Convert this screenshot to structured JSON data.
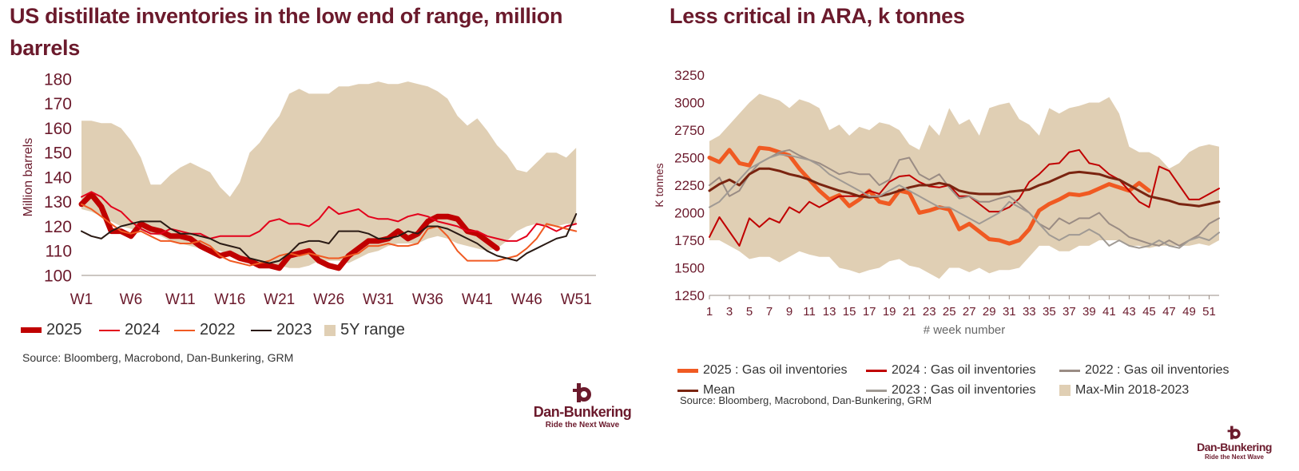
{
  "chart_data": [
    {
      "type": "line",
      "title": "US distillate inventories in the low end of range, million barrels",
      "ylabel": "Million barrels",
      "xlabel": "",
      "ylim": [
        100,
        180
      ],
      "yticks": [
        100,
        110,
        120,
        130,
        140,
        150,
        160,
        170,
        180
      ],
      "xlim": [
        1,
        53
      ],
      "xticks": [
        {
          "v": 1,
          "label": "W1"
        },
        {
          "v": 6,
          "label": "W6"
        },
        {
          "v": 11,
          "label": "W11"
        },
        {
          "v": 16,
          "label": "W16"
        },
        {
          "v": 21,
          "label": "W21"
        },
        {
          "v": 26,
          "label": "W26"
        },
        {
          "v": 31,
          "label": "W31"
        },
        {
          "v": 36,
          "label": "W36"
        },
        {
          "v": 41,
          "label": "W41"
        },
        {
          "v": 46,
          "label": "W46"
        },
        {
          "v": 51,
          "label": "W51"
        }
      ],
      "range": {
        "name": "5Y range",
        "upper": [
          163,
          163,
          162,
          162,
          160,
          155,
          148,
          137,
          137,
          141,
          144,
          146,
          144,
          142,
          136,
          132,
          138,
          150,
          154,
          160,
          165,
          174,
          176,
          174,
          174,
          174,
          177,
          177,
          178,
          178,
          179,
          178,
          178,
          179,
          178,
          177,
          175,
          172,
          165,
          161,
          164,
          159,
          153,
          149,
          143,
          142,
          146,
          150,
          150,
          148,
          152
        ],
        "lower": [
          127,
          126,
          124,
          122,
          120,
          119,
          118,
          117,
          116,
          114,
          113,
          112,
          111,
          110,
          110,
          108,
          106,
          105,
          105,
          104,
          104,
          103,
          103,
          104,
          106,
          106,
          106,
          105,
          107,
          109,
          110,
          112,
          113,
          113,
          113,
          115,
          116,
          115,
          113,
          112,
          111,
          110,
          111,
          114,
          118,
          120,
          121,
          120,
          120,
          121,
          121
        ]
      },
      "series": [
        {
          "name": "2025",
          "color": "#c00000",
          "width": 7,
          "values": [
            129,
            133,
            128,
            118,
            118,
            116,
            121,
            119,
            118,
            116,
            116,
            115,
            112,
            110,
            108,
            109,
            107,
            106,
            104,
            104,
            103,
            108,
            109,
            110,
            106,
            104,
            103,
            108,
            111,
            114,
            114,
            115,
            118,
            115,
            117,
            122,
            124,
            124,
            123,
            118,
            117,
            114,
            111
          ]
        },
        {
          "name": "2024",
          "color": "#e3001b",
          "width": 2,
          "values": [
            132,
            134,
            132,
            128,
            126,
            122,
            119,
            117,
            117,
            119,
            118,
            117,
            117,
            115,
            116,
            116,
            116,
            116,
            118,
            122,
            123,
            121,
            121,
            120,
            123,
            128,
            125,
            126,
            127,
            124,
            123,
            123,
            122,
            124,
            125,
            124,
            122,
            121,
            120,
            118,
            118,
            116,
            115,
            114,
            114,
            116,
            121,
            120,
            118,
            120,
            121
          ]
        },
        {
          "name": "2022",
          "color": "#f05a22",
          "width": 2,
          "values": [
            129,
            127,
            124,
            121,
            118,
            117,
            118,
            116,
            114,
            114,
            113,
            113,
            114,
            112,
            108,
            106,
            105,
            104,
            105,
            106,
            108,
            109,
            108,
            109,
            108,
            107,
            107,
            108,
            109,
            112,
            112,
            113,
            112,
            112,
            113,
            119,
            120,
            116,
            110,
            106,
            106,
            106,
            106,
            107,
            108,
            111,
            115,
            121,
            120,
            119,
            118
          ]
        },
        {
          "name": "2023",
          "color": "#2a1a14",
          "width": 2,
          "values": [
            118,
            116,
            115,
            118,
            120,
            121,
            122,
            122,
            122,
            119,
            117,
            117,
            116,
            115,
            113,
            112,
            111,
            107,
            106,
            105,
            106,
            109,
            113,
            114,
            114,
            113,
            118,
            118,
            118,
            117,
            115,
            115,
            116,
            118,
            117,
            120,
            120,
            119,
            117,
            115,
            113,
            110,
            108,
            107,
            106,
            109,
            111,
            113,
            115,
            116,
            125
          ]
        }
      ],
      "legend": [
        "2025",
        "2024",
        "2022",
        "2023",
        "5Y range"
      ],
      "source": "Source: Bloomberg, Macrobond, Dan-Bunkering, GRM"
    },
    {
      "type": "line",
      "title": "Less critical in ARA, k tonnes",
      "ylabel": "K tonnes",
      "xlabel": "# week number",
      "ylim": [
        1250,
        3250
      ],
      "yticks": [
        1250,
        1500,
        1750,
        2000,
        2250,
        2500,
        2750,
        3000,
        3250
      ],
      "xlim": [
        1,
        52
      ],
      "xticks": [
        1,
        3,
        5,
        7,
        9,
        11,
        13,
        15,
        17,
        19,
        21,
        23,
        25,
        27,
        29,
        31,
        33,
        35,
        37,
        39,
        41,
        43,
        45,
        47,
        49,
        51
      ],
      "range": {
        "name": "Max-Min 2018-2023",
        "upper": [
          2650,
          2700,
          2800,
          2900,
          3000,
          3080,
          3050,
          3020,
          2950,
          3030,
          3000,
          2950,
          2750,
          2800,
          2700,
          2780,
          2750,
          2820,
          2800,
          2750,
          2620,
          2570,
          2800,
          2700,
          2950,
          2800,
          2850,
          2700,
          2950,
          2980,
          3000,
          2850,
          2800,
          2700,
          2950,
          2900,
          2950,
          2970,
          3000,
          3000,
          3050,
          2900,
          2600,
          2550,
          2550,
          2500,
          2400,
          2450,
          2550,
          2600,
          2620,
          2600
        ],
        "lower": [
          1750,
          1750,
          1700,
          1650,
          1580,
          1600,
          1600,
          1550,
          1600,
          1650,
          1620,
          1600,
          1600,
          1500,
          1480,
          1450,
          1480,
          1500,
          1560,
          1580,
          1520,
          1500,
          1450,
          1400,
          1500,
          1500,
          1460,
          1500,
          1450,
          1480,
          1480,
          1500,
          1600,
          1700,
          1700,
          1650,
          1650,
          1700,
          1700,
          1750,
          1750,
          1750,
          1700,
          1700,
          1680,
          1700,
          1700,
          1700,
          1700,
          1720,
          1700,
          1750
        ]
      },
      "series": [
        {
          "name": "2025 : Gas oil inventories",
          "color": "#f05a22",
          "width": 5,
          "values": [
            2500,
            2460,
            2570,
            2450,
            2430,
            2590,
            2580,
            2550,
            2520,
            2400,
            2300,
            2200,
            2120,
            2160,
            2060,
            2120,
            2200,
            2100,
            2080,
            2200,
            2180,
            2000,
            2020,
            2050,
            2030,
            1850,
            1900,
            1830,
            1760,
            1750,
            1720,
            1750,
            1850,
            2020,
            2080,
            2120,
            2170,
            2160,
            2180,
            2220,
            2260,
            2230,
            2200,
            2270,
            2200
          ]
        },
        {
          "name": "2024 : Gas oil inventories",
          "color": "#c00000",
          "width": 2,
          "values": [
            1780,
            1960,
            1830,
            1700,
            1950,
            1870,
            1950,
            1910,
            2050,
            2000,
            2100,
            2050,
            2100,
            2150,
            2150,
            2150,
            2200,
            2170,
            2280,
            2330,
            2340,
            2280,
            2240,
            2230,
            2250,
            2150,
            2150,
            2080,
            2010,
            2010,
            2050,
            2130,
            2280,
            2350,
            2440,
            2450,
            2550,
            2570,
            2450,
            2430,
            2350,
            2300,
            2200,
            2100,
            2050,
            2420,
            2380,
            2250,
            2120,
            2120,
            2170,
            2220
          ]
        },
        {
          "name": "2022 : Gas oil inventories",
          "color": "#9a8c84",
          "width": 2,
          "values": [
            2250,
            2320,
            2150,
            2200,
            2350,
            2450,
            2500,
            2550,
            2570,
            2520,
            2480,
            2450,
            2400,
            2350,
            2370,
            2350,
            2350,
            2250,
            2300,
            2480,
            2500,
            2350,
            2300,
            2350,
            2230,
            2130,
            2150,
            2100,
            2100,
            2130,
            2150,
            2080,
            2000,
            1900,
            1850,
            1950,
            1900,
            1950,
            1950,
            2000,
            1900,
            1850,
            1780,
            1750,
            1720,
            1700,
            1750,
            1700,
            1750,
            1800,
            1900,
            1950
          ]
        },
        {
          "name": "Mean",
          "color": "#7a2410",
          "width": 3,
          "values": [
            2200,
            2260,
            2300,
            2250,
            2350,
            2400,
            2400,
            2380,
            2350,
            2330,
            2300,
            2260,
            2230,
            2200,
            2180,
            2150,
            2140,
            2150,
            2170,
            2200,
            2230,
            2250,
            2250,
            2270,
            2250,
            2200,
            2180,
            2170,
            2170,
            2170,
            2190,
            2200,
            2210,
            2250,
            2280,
            2320,
            2360,
            2370,
            2360,
            2350,
            2320,
            2300,
            2250,
            2200,
            2150,
            2130,
            2110,
            2080,
            2070,
            2060,
            2080,
            2100
          ]
        },
        {
          "name": "2023 : Gas oil inventories",
          "color": "#a09a94",
          "width": 2,
          "values": [
            2050,
            2100,
            2200,
            2300,
            2400,
            2450,
            2500,
            2530,
            2520,
            2500,
            2480,
            2430,
            2350,
            2300,
            2250,
            2200,
            2150,
            2150,
            2200,
            2250,
            2200,
            2150,
            2100,
            2050,
            2050,
            2000,
            1950,
            1900,
            1950,
            2000,
            2100,
            2050,
            2000,
            1900,
            1800,
            1750,
            1800,
            1800,
            1850,
            1800,
            1700,
            1750,
            1700,
            1680,
            1700,
            1750,
            1700,
            1680,
            1750,
            1780,
            1750,
            1820
          ]
        }
      ],
      "legend": [
        "2025 : Gas oil inventories",
        "2024 : Gas oil inventories",
        "2022 : Gas oil inventories",
        "Mean",
        "2023 : Gas oil inventories",
        "Max-Min 2018-2023"
      ],
      "source": "Source: Bloomberg, Macrobond, Dan-Bunkering, GRM"
    }
  ],
  "logo": {
    "brand": "Dan-Bunkering",
    "tagline": "Ride the Next Wave"
  },
  "colors": {
    "range_fill": "#e0cfb4",
    "title": "#6b1a2c",
    "axis_text": "#6b1a2c"
  }
}
